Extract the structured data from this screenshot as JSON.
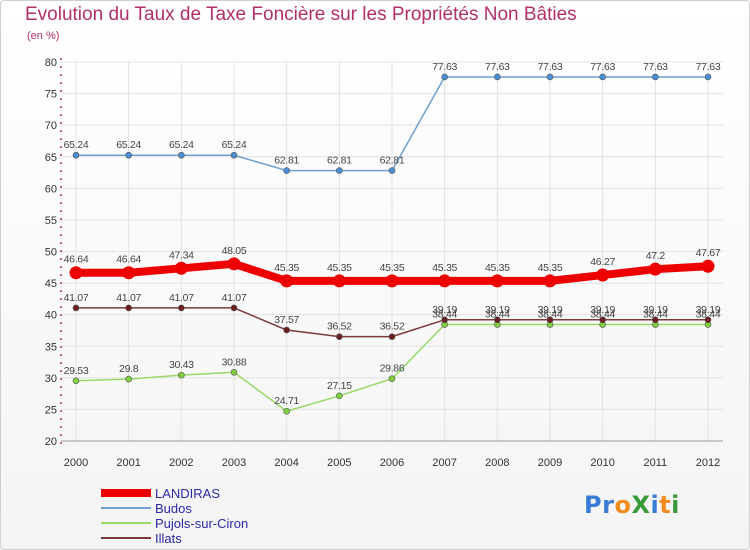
{
  "header": {
    "title": "Evolution du Taux de Taxe Foncière sur les Propriétés Non Bâties",
    "unit": "(en %)"
  },
  "logo": {
    "text": "Proxiti",
    "letters": [
      {
        "ch": "P",
        "color": "#3a7bd5"
      },
      {
        "ch": "r",
        "color": "#3a7bd5"
      },
      {
        "ch": "o",
        "color": "#f28c1e"
      },
      {
        "ch": "X",
        "color": "#3a9a3a"
      },
      {
        "ch": "i",
        "color": "#3a7bd5"
      },
      {
        "ch": "t",
        "color": "#f28c1e"
      },
      {
        "ch": "i",
        "color": "#3a9a3a"
      }
    ]
  },
  "chart_data": {
    "type": "line",
    "title": "Evolution du Taux de Taxe Foncière sur les Propriétés Non Bâties",
    "ylabel": "(en %)",
    "xlabel": "",
    "ylim": [
      20,
      80
    ],
    "yticks": [
      "20",
      "25",
      "30",
      "35",
      "40",
      "45",
      "50",
      "55",
      "60",
      "65",
      "70",
      "75",
      "80"
    ],
    "grid": true,
    "legend_position": "bottom-left",
    "categories": [
      "2000",
      "2001",
      "2002",
      "2003",
      "2004",
      "2005",
      "2006",
      "2007",
      "2008",
      "2009",
      "2010",
      "2011",
      "2012"
    ],
    "series": [
      {
        "name": "LANDIRAS",
        "color": "#ee0000",
        "marker_fill": "#ee0000",
        "emphasis": true,
        "values": [
          46.64,
          46.64,
          47.34,
          48.05,
          45.35,
          45.35,
          45.35,
          45.35,
          45.35,
          45.35,
          46.27,
          47.2,
          47.67
        ],
        "labels": [
          "46.64",
          "46.64",
          "47.34",
          "48.05",
          "45.35",
          "45.35",
          "45.35",
          "45.35",
          "45.35",
          "45.35",
          "46.27",
          "47.2",
          "47.67"
        ]
      },
      {
        "name": "Budos",
        "color": "#6fa0cf",
        "marker_fill": "#4a8fd4",
        "emphasis": false,
        "values": [
          65.24,
          65.24,
          65.24,
          65.24,
          62.81,
          62.81,
          62.81,
          77.63,
          77.63,
          77.63,
          77.63,
          77.63,
          77.63
        ],
        "labels": [
          "65.24",
          "65.24",
          "65.24",
          "65.24",
          "62.81",
          "62.81",
          "62.81",
          "77.63",
          "77.63",
          "77.63",
          "77.63",
          "77.63",
          "77.63"
        ]
      },
      {
        "name": "Pujols-sur-Ciron",
        "color": "#9ad86a",
        "marker_fill": "#7fcf3f",
        "emphasis": false,
        "values": [
          29.53,
          29.8,
          30.43,
          30.88,
          24.71,
          27.15,
          29.86,
          38.44,
          38.44,
          38.44,
          38.44,
          38.44,
          38.44
        ],
        "labels": [
          "29.53",
          "29.8",
          "30.43",
          "30.88",
          "24.71",
          "27.15",
          "29.86",
          "38.44",
          "38.44",
          "38.44",
          "38.44",
          "38.44",
          "38.44"
        ]
      },
      {
        "name": "Illats",
        "color": "#7a3a3a",
        "marker_fill": "#6b1f1f",
        "emphasis": false,
        "values": [
          41.07,
          41.07,
          41.07,
          41.07,
          37.57,
          36.52,
          36.52,
          39.19,
          39.19,
          39.19,
          39.19,
          39.19,
          39.19
        ],
        "labels": [
          "41.07",
          "41.07",
          "41.07",
          "41.07",
          "37.57",
          "36.52",
          "36.52",
          "39.19",
          "39.19",
          "39.19",
          "39.19",
          "39.19",
          "39.19"
        ]
      }
    ]
  }
}
